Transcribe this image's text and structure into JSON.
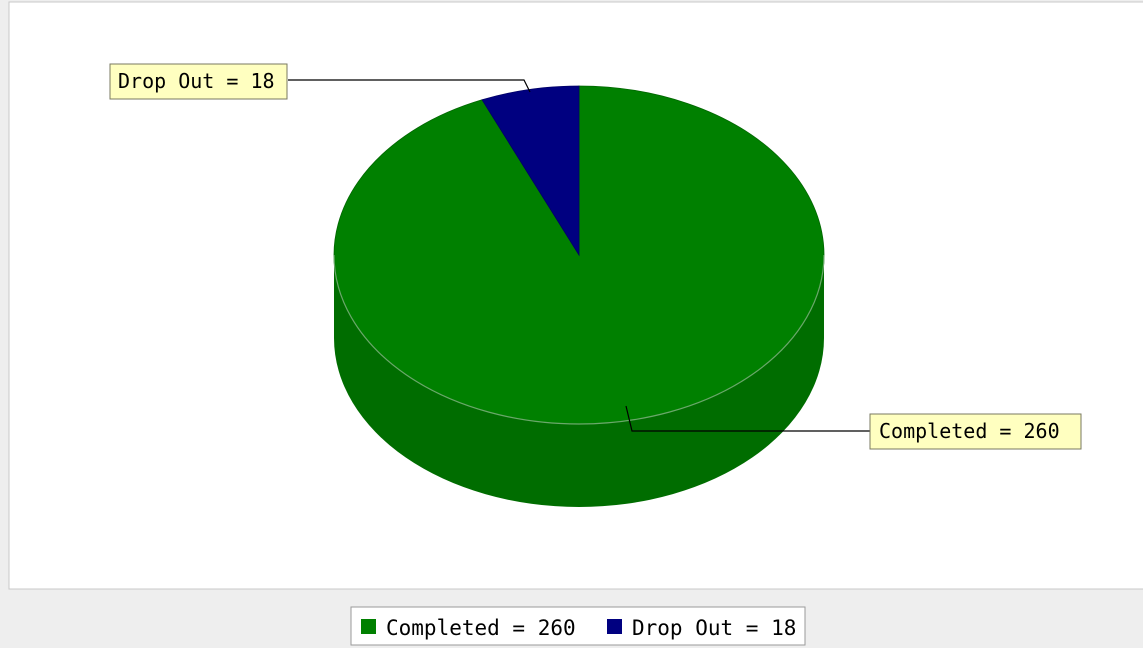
{
  "chart_data": {
    "type": "pie",
    "title": "",
    "slices": [
      {
        "label": "Completed",
        "value": 260,
        "color": "#008000",
        "display": "Completed = 260"
      },
      {
        "label": "Drop Out",
        "value": 18,
        "color": "#000080",
        "display": "Drop Out = 18"
      }
    ],
    "legend_position": "bottom",
    "three_d": true
  }
}
